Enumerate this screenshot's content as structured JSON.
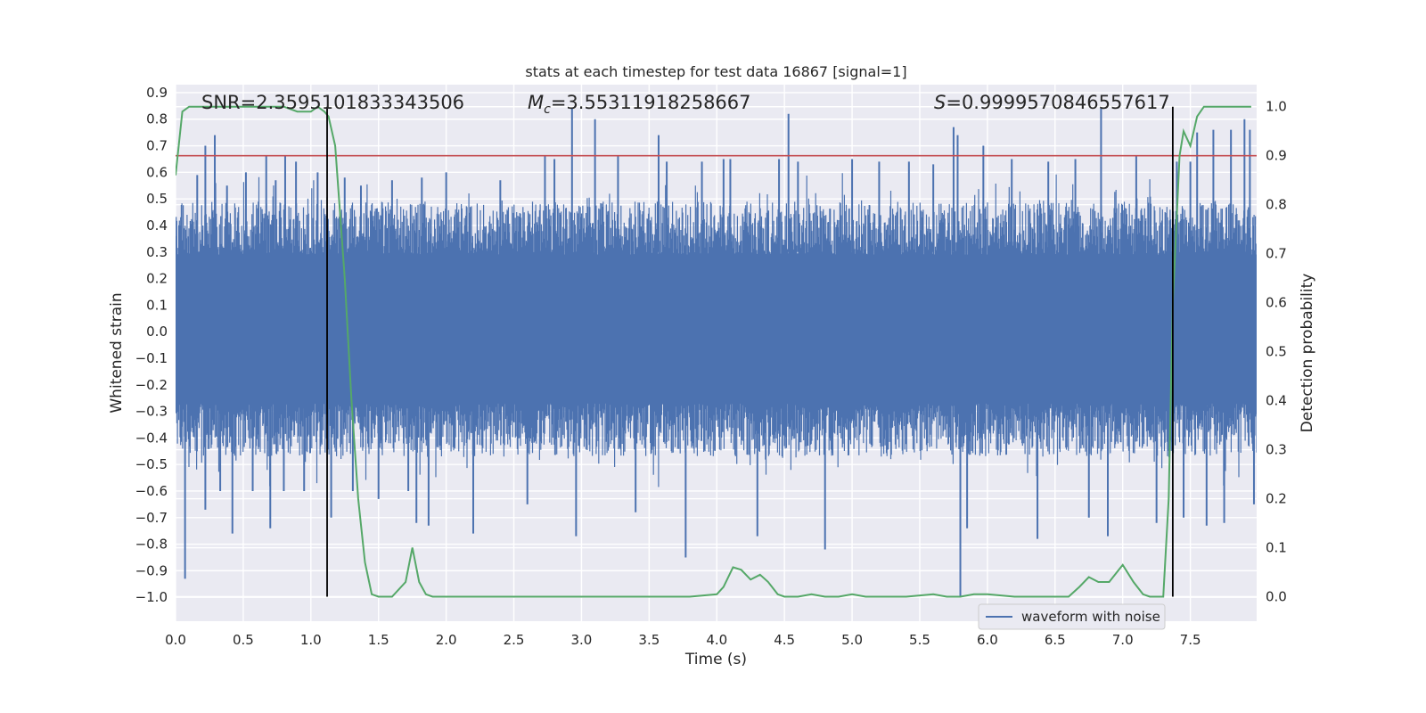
{
  "chart_data": {
    "type": "line",
    "title": "stats at each timestep for test data 16867 [signal=1]",
    "xlabel": "Time (s)",
    "ylabel": "Whitened strain",
    "y2label": "Detection probability",
    "xlim": [
      0.0,
      7.99
    ],
    "ylim": [
      -1.09,
      0.93
    ],
    "y2lim": [
      -0.05,
      1.045
    ],
    "x_ticks": [
      0.0,
      0.5,
      1.0,
      1.5,
      2.0,
      2.5,
      3.0,
      3.5,
      4.0,
      4.5,
      5.0,
      5.5,
      6.0,
      6.5,
      7.0,
      7.5
    ],
    "x_tick_labels": [
      "0.0",
      "0.5",
      "1.0",
      "1.5",
      "2.0",
      "2.5",
      "3.0",
      "3.5",
      "4.0",
      "4.5",
      "5.0",
      "5.5",
      "6.0",
      "6.5",
      "7.0",
      "7.5"
    ],
    "y_ticks": [
      0.9,
      0.8,
      0.7,
      0.6,
      0.5,
      0.4,
      0.3,
      0.2,
      0.1,
      0.0,
      -0.1,
      -0.2,
      -0.3,
      -0.4,
      -0.5,
      -0.6,
      -0.7,
      -0.8,
      -0.9,
      -1.0
    ],
    "y_tick_labels": [
      "0.9",
      "0.8",
      "0.7",
      "0.6",
      "0.5",
      "0.4",
      "0.3",
      "0.2",
      "0.1",
      "0.0",
      "−0.1",
      "−0.2",
      "−0.3",
      "−0.4",
      "−0.5",
      "−0.6",
      "−0.7",
      "−0.8",
      "−0.9",
      "−1.0"
    ],
    "y2_ticks": [
      1.0,
      0.9,
      0.8,
      0.7,
      0.6,
      0.5,
      0.4,
      0.3,
      0.2,
      0.1,
      0.0
    ],
    "y2_tick_labels": [
      "1.0",
      "0.9",
      "0.8",
      "0.7",
      "0.6",
      "0.5",
      "0.4",
      "0.3",
      "0.2",
      "0.1",
      "0.0"
    ],
    "annotations": {
      "snr": "SNR=2.3595101833343506",
      "mc_symbol": "M",
      "mc_sub": "c",
      "mc_value": "=3.55311918258667",
      "s_symbol": "S",
      "s_value": "=0.9999570846557617"
    },
    "threshold": {
      "axis": "y2",
      "value": 0.9,
      "color": "#c44e52"
    },
    "vlines": [
      1.12,
      7.37
    ],
    "waveform": {
      "name": "waveform with noise",
      "color": "#4c72b0",
      "x_range": [
        0.0,
        7.99
      ],
      "core_envelope": [
        -0.27,
        0.29
      ],
      "note": "dense noisy strain samples; typical |y| ~ 0.3-0.5 with spikes"
    },
    "spikes": [
      {
        "x": 0.07,
        "y": -0.93
      },
      {
        "x": 0.16,
        "y": 0.59
      },
      {
        "x": 0.22,
        "y": -0.67
      },
      {
        "x": 0.22,
        "y": 0.7
      },
      {
        "x": 0.29,
        "y": 0.74
      },
      {
        "x": 0.33,
        "y": -0.6
      },
      {
        "x": 0.38,
        "y": 0.55
      },
      {
        "x": 0.42,
        "y": -0.76
      },
      {
        "x": 0.52,
        "y": 0.6
      },
      {
        "x": 0.57,
        "y": -0.6
      },
      {
        "x": 0.67,
        "y": 0.66
      },
      {
        "x": 0.7,
        "y": -0.74
      },
      {
        "x": 0.74,
        "y": 0.57
      },
      {
        "x": 0.8,
        "y": -0.6
      },
      {
        "x": 0.81,
        "y": 0.66
      },
      {
        "x": 0.89,
        "y": 0.64
      },
      {
        "x": 0.95,
        "y": -0.6
      },
      {
        "x": 1.05,
        "y": 0.6
      },
      {
        "x": 1.15,
        "y": -0.7
      },
      {
        "x": 1.25,
        "y": 0.58
      },
      {
        "x": 1.31,
        "y": -0.6
      },
      {
        "x": 1.37,
        "y": 0.55
      },
      {
        "x": 1.5,
        "y": -0.63
      },
      {
        "x": 1.6,
        "y": 0.57
      },
      {
        "x": 1.72,
        "y": -0.6
      },
      {
        "x": 1.78,
        "y": -0.72
      },
      {
        "x": 1.82,
        "y": 0.58
      },
      {
        "x": 1.87,
        "y": -0.73
      },
      {
        "x": 2.0,
        "y": 0.6
      },
      {
        "x": 2.2,
        "y": -0.76
      },
      {
        "x": 2.4,
        "y": 0.57
      },
      {
        "x": 2.6,
        "y": -0.65
      },
      {
        "x": 2.73,
        "y": 0.66
      },
      {
        "x": 2.8,
        "y": 0.65
      },
      {
        "x": 2.93,
        "y": 0.84
      },
      {
        "x": 2.96,
        "y": -0.77
      },
      {
        "x": 3.1,
        "y": 0.8
      },
      {
        "x": 3.27,
        "y": 0.66
      },
      {
        "x": 3.4,
        "y": -0.68
      },
      {
        "x": 3.57,
        "y": 0.74
      },
      {
        "x": 3.63,
        "y": 0.64
      },
      {
        "x": 3.77,
        "y": -0.85
      },
      {
        "x": 3.89,
        "y": 0.64
      },
      {
        "x": 4.05,
        "y": 0.65
      },
      {
        "x": 4.1,
        "y": 0.65
      },
      {
        "x": 4.3,
        "y": -0.77
      },
      {
        "x": 4.46,
        "y": 0.65
      },
      {
        "x": 4.53,
        "y": 0.82
      },
      {
        "x": 4.6,
        "y": 0.64
      },
      {
        "x": 4.8,
        "y": -0.82
      },
      {
        "x": 5.0,
        "y": 0.65
      },
      {
        "x": 5.2,
        "y": 0.64
      },
      {
        "x": 5.42,
        "y": 0.64
      },
      {
        "x": 5.6,
        "y": 0.63
      },
      {
        "x": 5.75,
        "y": 0.77
      },
      {
        "x": 5.78,
        "y": 0.74
      },
      {
        "x": 5.8,
        "y": -1.0
      },
      {
        "x": 5.85,
        "y": -0.74
      },
      {
        "x": 5.97,
        "y": 0.7
      },
      {
        "x": 6.18,
        "y": 0.65
      },
      {
        "x": 6.37,
        "y": -0.78
      },
      {
        "x": 6.45,
        "y": 0.64
      },
      {
        "x": 6.65,
        "y": 0.65
      },
      {
        "x": 6.75,
        "y": -0.7
      },
      {
        "x": 6.84,
        "y": 0.84
      },
      {
        "x": 6.89,
        "y": -0.77
      },
      {
        "x": 7.1,
        "y": 0.66
      },
      {
        "x": 7.25,
        "y": -0.72
      },
      {
        "x": 7.4,
        "y": 0.64
      },
      {
        "x": 7.45,
        "y": -0.7
      },
      {
        "x": 7.5,
        "y": 0.64
      },
      {
        "x": 7.55,
        "y": 0.75
      },
      {
        "x": 7.62,
        "y": -0.73
      },
      {
        "x": 7.67,
        "y": 0.76
      },
      {
        "x": 7.75,
        "y": -0.72
      },
      {
        "x": 7.8,
        "y": 0.76
      },
      {
        "x": 7.9,
        "y": 0.8
      },
      {
        "x": 7.94,
        "y": 0.76
      },
      {
        "x": 7.97,
        "y": -0.65
      }
    ],
    "probability": {
      "color": "#55a868",
      "x": [
        0.0,
        0.05,
        0.1,
        0.2,
        0.4,
        0.6,
        0.8,
        0.9,
        1.0,
        1.05,
        1.1,
        1.13,
        1.18,
        1.25,
        1.3,
        1.35,
        1.4,
        1.45,
        1.5,
        1.6,
        1.7,
        1.75,
        1.8,
        1.85,
        1.9,
        2.0,
        2.2,
        2.5,
        2.8,
        3.0,
        3.2,
        3.5,
        3.8,
        4.0,
        4.05,
        4.12,
        4.18,
        4.25,
        4.32,
        4.38,
        4.45,
        4.5,
        4.6,
        4.7,
        4.8,
        4.9,
        5.0,
        5.1,
        5.2,
        5.4,
        5.6,
        5.7,
        5.8,
        5.9,
        6.0,
        6.2,
        6.4,
        6.6,
        6.68,
        6.75,
        6.82,
        6.9,
        7.0,
        7.08,
        7.15,
        7.2,
        7.3,
        7.34,
        7.37,
        7.42,
        7.45,
        7.5,
        7.55,
        7.6,
        7.7,
        7.8,
        7.95
      ],
      "y": [
        0.86,
        0.99,
        1.0,
        1.0,
        1.0,
        1.0,
        1.0,
        0.99,
        0.99,
        1.0,
        0.99,
        0.98,
        0.92,
        0.65,
        0.4,
        0.2,
        0.07,
        0.005,
        0.0,
        0.0,
        0.03,
        0.1,
        0.03,
        0.005,
        0.0,
        0.0,
        0.0,
        0.0,
        0.0,
        0.0,
        0.0,
        0.0,
        0.0,
        0.005,
        0.02,
        0.06,
        0.055,
        0.035,
        0.045,
        0.03,
        0.005,
        0.0,
        0.0,
        0.005,
        0.0,
        0.0,
        0.005,
        0.0,
        0.0,
        0.0,
        0.005,
        0.0,
        0.0,
        0.005,
        0.005,
        0.0,
        0.0,
        0.0,
        0.02,
        0.04,
        0.03,
        0.03,
        0.065,
        0.03,
        0.005,
        0.0,
        0.0,
        0.2,
        0.6,
        0.9,
        0.95,
        0.92,
        0.98,
        1.0,
        1.0,
        1.0,
        1.0
      ]
    },
    "legend": {
      "label": "waveform with noise",
      "placement": "lower-right"
    }
  }
}
